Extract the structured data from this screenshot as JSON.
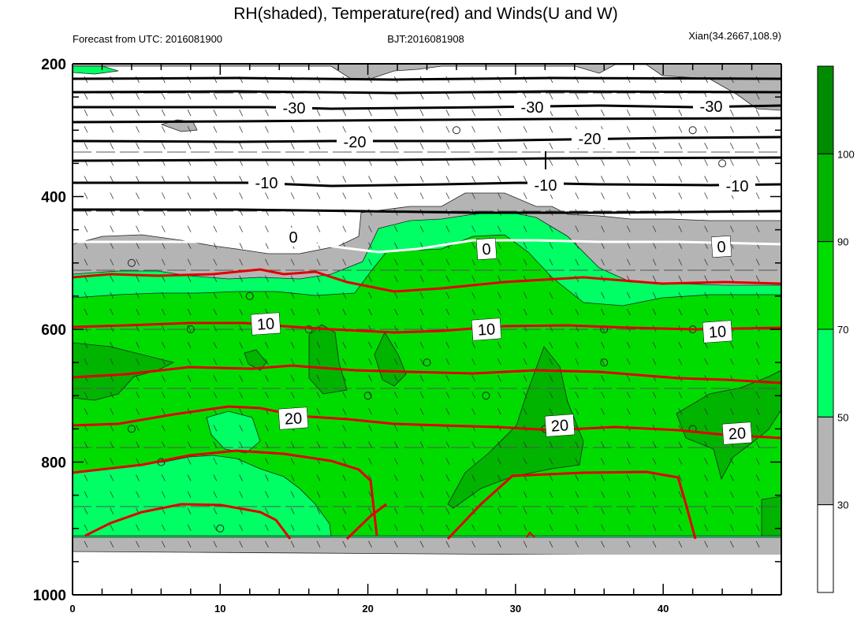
{
  "chart_data": {
    "type": "heatmap",
    "title": "RH(shaded), Temperature(red) and Winds(U and W)",
    "subtitle_left": "Forecast from UTC: 2016081900",
    "subtitle_center": "BJT:2016081908",
    "subtitle_right": "Xian(34.2667,108.9)",
    "x_ticks": [
      "0",
      "10",
      "20",
      "30",
      "40"
    ],
    "x_range": [
      0,
      48
    ],
    "y_ticks": [
      "200",
      "400",
      "600",
      "800",
      "1000"
    ],
    "y_range": [
      200,
      1000
    ],
    "y_reversed": true,
    "colorbar": {
      "levels": [
        "30",
        "50",
        "70",
        "90",
        "100"
      ],
      "colors": [
        "#ffffff",
        "#b4b4b4",
        "#00ff64",
        "#00dc00",
        "#00b400",
        "#008c00"
      ]
    },
    "temperature_contours": [
      {
        "value": -30,
        "color": "#000000"
      },
      {
        "value": -20,
        "color": "#000000"
      },
      {
        "value": -10,
        "color": "#000000"
      },
      {
        "value": 0,
        "color": "#ffffff"
      },
      {
        "value": 10,
        "color": "#e00000"
      },
      {
        "value": 20,
        "color": "#e00000"
      }
    ],
    "contour_labels": [
      "-30",
      "-30",
      "-30",
      "-20",
      "-20",
      "-10",
      "-10",
      "-10",
      "0",
      "0",
      "0",
      "10",
      "10",
      "10",
      "20",
      "20",
      "20"
    ]
  }
}
